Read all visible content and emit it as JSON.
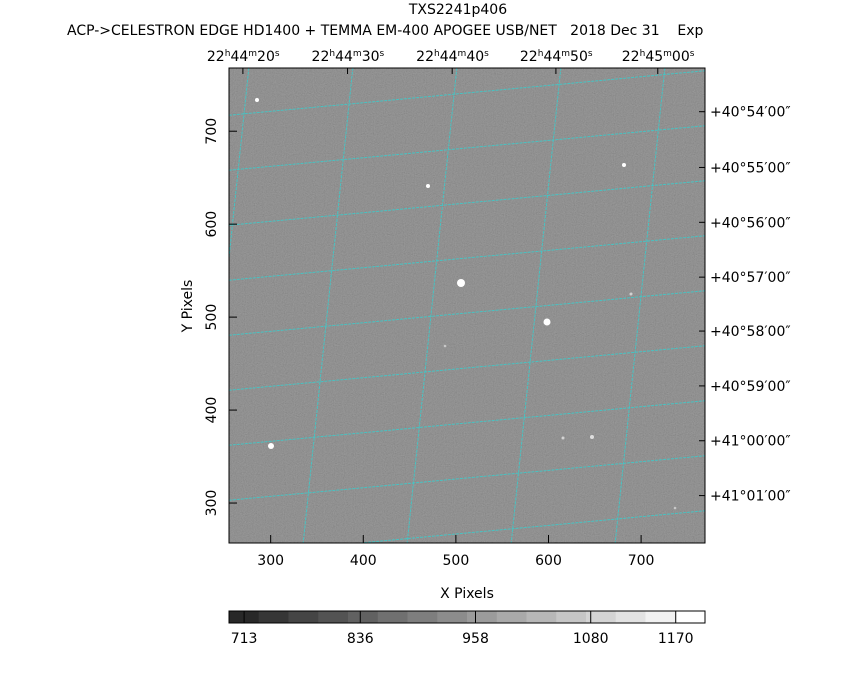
{
  "chart_data": {
    "type": "image",
    "title": "TXS2241p406",
    "subtitle": "ACP->CELESTRON EDGE HD1400 + TEMMA EM-400 APOGEE USB/NET   2018 Dec 31    Exp",
    "xlabel": "X Pixels",
    "ylabel": "Y Pixels",
    "xlim": [
      255,
      769
    ],
    "ylim": [
      257,
      768
    ],
    "xticks": [
      300,
      400,
      500,
      600,
      700
    ],
    "yticks": [
      300,
      400,
      500,
      600,
      700
    ],
    "x2ticks": [
      {
        "value": 270,
        "label": "22h44m20s"
      },
      {
        "value": 383,
        "label": "22h44m30s"
      },
      {
        "value": 496,
        "label": "22h44m40s"
      },
      {
        "value": 608,
        "label": "22h44m50s"
      },
      {
        "value": 718,
        "label": "22h45m00s"
      }
    ],
    "y2ticks": [
      {
        "value": 721,
        "label": "+40°54′00″"
      },
      {
        "value": 661,
        "label": "+40°55′00″"
      },
      {
        "value": 602,
        "label": "+40°56′00″"
      },
      {
        "value": 543,
        "label": "+40°57′00″"
      },
      {
        "value": 485,
        "label": "+40°58′00″"
      },
      {
        "value": 426,
        "label": "+40°59′00″"
      },
      {
        "value": 367,
        "label": "+41°00′00″"
      },
      {
        "value": 308,
        "label": "+41°01′00″"
      }
    ],
    "colorbar": {
      "lim": [
        697,
        1201
      ],
      "ticks": [
        713,
        836,
        958,
        1080,
        1170
      ]
    },
    "grid_color": "#40c8c8"
  }
}
